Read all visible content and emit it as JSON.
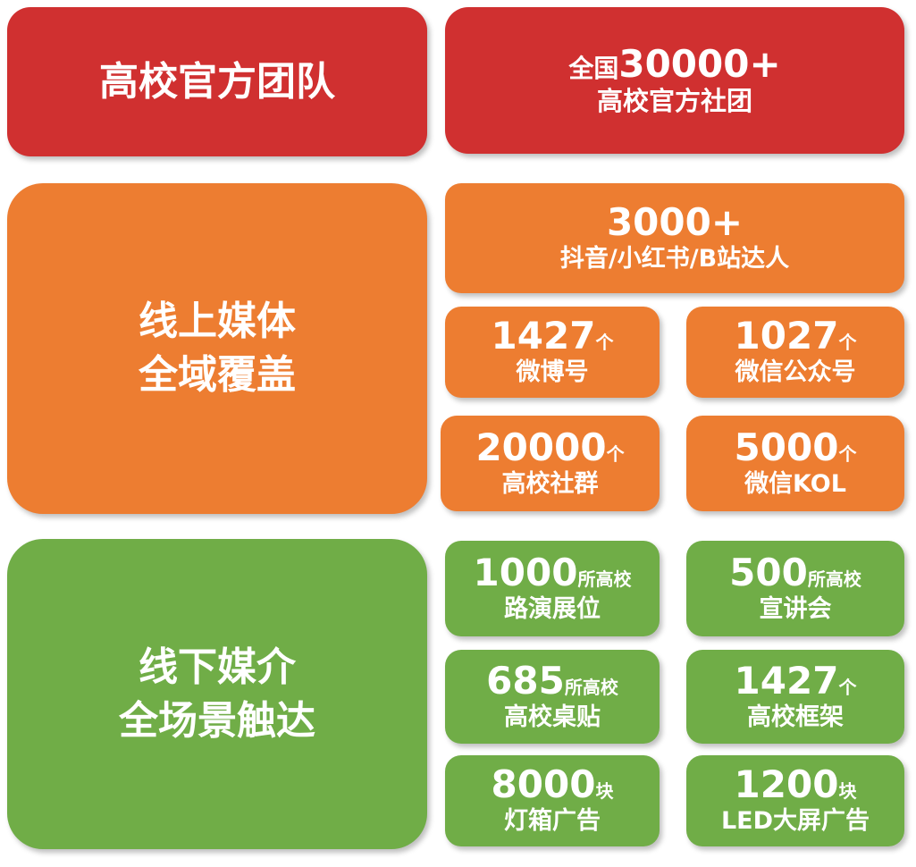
{
  "colors": {
    "red": "#d03030",
    "orange": "#ed7d31",
    "green": "#70ad47"
  },
  "team": {
    "title": "高校官方团队",
    "stat_prefix": "全国",
    "stat_number": "30000+",
    "stat_label": "高校官方社团"
  },
  "online": {
    "title_line1": "线上媒体",
    "title_line2": "全域覆盖",
    "influencers": {
      "number": "3000+",
      "label": "抖音/小红书/B站达人"
    },
    "items": [
      {
        "number": "1427",
        "unit": "个",
        "label": "微博号"
      },
      {
        "number": "1027",
        "unit": "个",
        "label": "微信公众号"
      },
      {
        "number": "20000",
        "unit": "个",
        "label": "高校社群"
      },
      {
        "number": "5000",
        "unit": "个",
        "label": "微信KOL"
      }
    ]
  },
  "offline": {
    "title_line1": "线下媒介",
    "title_line2": "全场景触达",
    "items": [
      {
        "number": "1000",
        "unit": "所高校",
        "label": "路演展位"
      },
      {
        "number": "500",
        "unit": "所高校",
        "label": "宣讲会"
      },
      {
        "number": "685",
        "unit": "所高校",
        "label": "高校桌贴"
      },
      {
        "number": "1427",
        "unit": "个",
        "label": "高校框架"
      },
      {
        "number": "8000",
        "unit": "块",
        "label": "灯箱广告"
      },
      {
        "number": "1200",
        "unit": "块",
        "label": "LED大屏广告"
      }
    ]
  }
}
